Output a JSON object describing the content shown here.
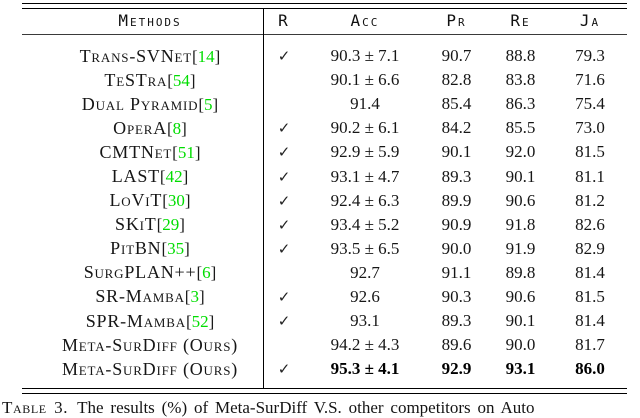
{
  "table": {
    "headers": {
      "method": "Methods",
      "r": "R",
      "acc": "Acc",
      "pr": "Pr",
      "re": "Re",
      "ja": "Ja"
    },
    "checkmark": "✓",
    "cite_open": "[",
    "cite_close": "]",
    "rows": [
      {
        "method": "Trans-SVNet",
        "cite": "14",
        "reviewed": true,
        "acc": "90.3 ± 7.1",
        "pr": "90.7",
        "re": "88.8",
        "ja": "79.3",
        "bold": false
      },
      {
        "method": "TeSTra",
        "cite": "54",
        "reviewed": false,
        "acc": "90.1 ± 6.6",
        "pr": "82.8",
        "re": "83.8",
        "ja": "71.6",
        "bold": false
      },
      {
        "method": "Dual Pyramid",
        "cite": "5",
        "reviewed": false,
        "acc": "91.4",
        "pr": "85.4",
        "re": "86.3",
        "ja": "75.4",
        "bold": false
      },
      {
        "method": "OperA",
        "cite": "8",
        "reviewed": true,
        "acc": "90.2 ± 6.1",
        "pr": "84.2",
        "re": "85.5",
        "ja": "73.0",
        "bold": false
      },
      {
        "method": "CMTNet",
        "cite": "51",
        "reviewed": true,
        "acc": "92.9 ± 5.9",
        "pr": "90.1",
        "re": "92.0",
        "ja": "81.5",
        "bold": false
      },
      {
        "method": "LAST",
        "cite": "42",
        "reviewed": true,
        "acc": "93.1 ± 4.7",
        "pr": "89.3",
        "re": "90.1",
        "ja": "81.1",
        "bold": false
      },
      {
        "method": "LoViT",
        "cite": "30",
        "reviewed": true,
        "acc": "92.4 ± 6.3",
        "pr": "89.9",
        "re": "90.6",
        "ja": "81.2",
        "bold": false
      },
      {
        "method": "SKiT",
        "cite": "29",
        "reviewed": true,
        "acc": "93.4 ± 5.2",
        "pr": "90.9",
        "re": "91.8",
        "ja": "82.6",
        "bold": false
      },
      {
        "method": "PitBN",
        "cite": "35",
        "reviewed": true,
        "acc": "93.5 ± 6.5",
        "pr": "90.0",
        "re": "91.9",
        "ja": "82.9",
        "bold": false
      },
      {
        "method": "SurgPLAN++",
        "cite": "6",
        "reviewed": false,
        "acc": "92.7",
        "pr": "91.1",
        "re": "89.8",
        "ja": "81.4",
        "bold": false
      },
      {
        "method": "SR-Mamba",
        "cite": "3",
        "reviewed": true,
        "acc": "92.6",
        "pr": "90.3",
        "re": "90.6",
        "ja": "81.5",
        "bold": false
      },
      {
        "method": "SPR-Mamba",
        "cite": "52",
        "reviewed": true,
        "acc": "93.1",
        "pr": "89.3",
        "re": "90.1",
        "ja": "81.4",
        "bold": false
      },
      {
        "method": "Meta-SurDiff (Ours)",
        "cite": null,
        "reviewed": false,
        "acc": "94.2 ± 4.3",
        "pr": "89.6",
        "re": "90.0",
        "ja": "81.7",
        "bold": false
      },
      {
        "method": "Meta-SurDiff (Ours)",
        "cite": null,
        "reviewed": true,
        "acc": "95.3 ± 4.1",
        "pr": "92.9",
        "re": "93.1",
        "ja": "86.0",
        "bold": true
      }
    ]
  },
  "caption": {
    "label": "Table 3.",
    "text": "The results (%) of Meta-SurDiff V.S. other competitors on Auto"
  },
  "colors": {
    "citation_green": "#00dd00",
    "text": "#1a1a1a",
    "rule": "#000000"
  }
}
